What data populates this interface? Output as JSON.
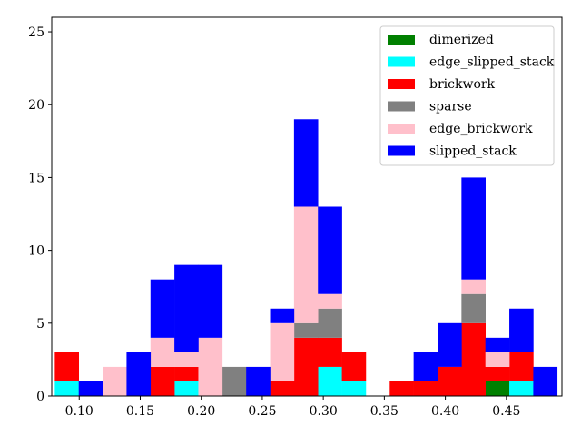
{
  "chart_data": {
    "type": "bar",
    "stacked": true,
    "bin_edges": [
      0.08,
      0.0996,
      0.1192,
      0.1388,
      0.1584,
      0.178,
      0.1976,
      0.2172,
      0.2368,
      0.2564,
      0.276,
      0.2956,
      0.3152,
      0.3348,
      0.3544,
      0.374,
      0.3936,
      0.4132,
      0.4328,
      0.4524,
      0.472,
      0.4916
    ],
    "xlim": [
      0.0775,
      0.4955
    ],
    "ylim": [
      0,
      26
    ],
    "xticks": [
      0.1,
      0.15,
      0.2,
      0.25,
      0.3,
      0.35,
      0.4,
      0.45
    ],
    "xtick_labels": [
      "0.10",
      "0.15",
      "0.20",
      "0.25",
      "0.30",
      "0.35",
      "0.40",
      "0.45"
    ],
    "yticks": [
      0,
      5,
      10,
      15,
      20,
      25
    ],
    "ytick_labels": [
      "0",
      "5",
      "10",
      "15",
      "20",
      "25"
    ],
    "grid": false,
    "legend_position": "top-right",
    "series": [
      {
        "name": "dimerized",
        "color": "#008000",
        "values": [
          0,
          0,
          0,
          0,
          0,
          0,
          0,
          0,
          0,
          0,
          0,
          0,
          0,
          0,
          0,
          0,
          0,
          0,
          1,
          0,
          0
        ]
      },
      {
        "name": "edge_slipped_stack",
        "color": "#00ffff",
        "values": [
          1,
          0,
          0,
          0,
          0,
          1,
          0,
          0,
          0,
          0,
          0,
          2,
          1,
          0,
          0,
          0,
          0,
          0,
          0,
          1,
          0
        ]
      },
      {
        "name": "brickwork",
        "color": "#ff0000",
        "values": [
          2,
          0,
          0,
          0,
          2,
          1,
          0,
          0,
          0,
          1,
          4,
          2,
          2,
          0,
          1,
          1,
          2,
          5,
          1,
          2,
          0
        ]
      },
      {
        "name": "sparse",
        "color": "#808080",
        "values": [
          0,
          0,
          0,
          0,
          0,
          0,
          0,
          2,
          0,
          0,
          1,
          2,
          0,
          0,
          0,
          0,
          0,
          2,
          0,
          0,
          0
        ]
      },
      {
        "name": "edge_brickwork",
        "color": "#ffc0cb",
        "values": [
          0,
          0,
          2,
          0,
          2,
          1,
          4,
          0,
          0,
          4,
          8,
          1,
          0,
          0,
          0,
          0,
          0,
          1,
          1,
          0,
          0
        ]
      },
      {
        "name": "slipped_stack",
        "color": "#0000ff",
        "values": [
          0,
          1,
          0,
          3,
          4,
          6,
          5,
          0,
          2,
          1,
          6,
          6,
          0,
          0,
          0,
          2,
          3,
          7,
          1,
          3,
          2
        ]
      }
    ],
    "legend_order": [
      "dimerized",
      "edge_slipped_stack",
      "brickwork",
      "sparse",
      "edge_brickwork",
      "slipped_stack"
    ]
  }
}
